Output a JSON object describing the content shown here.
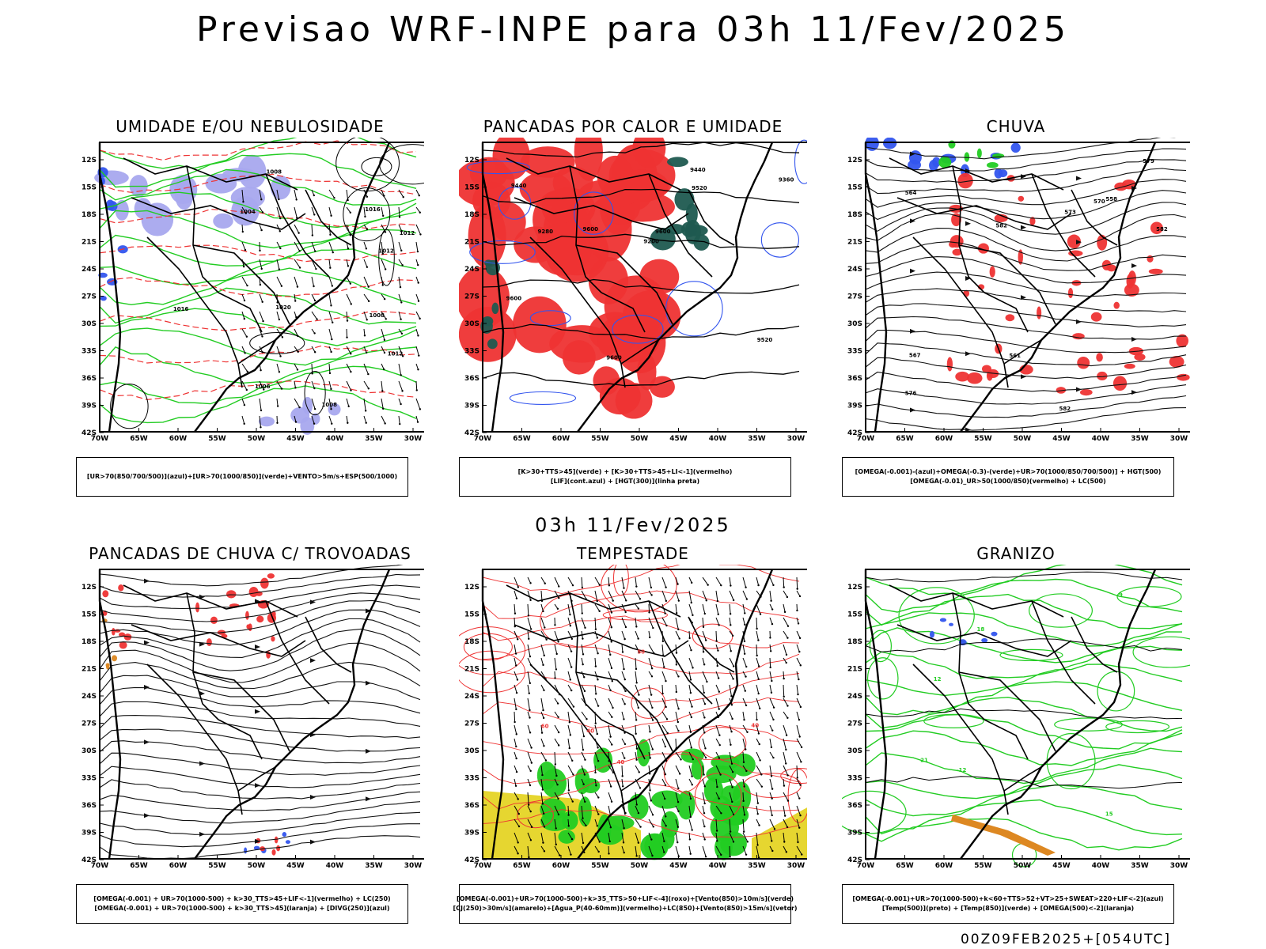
{
  "title": "Previsao WRF-INPE  para 03h 11/Fev/2025",
  "subtitle": "03h 11/Fev/2025",
  "footer": "00Z09FEB2025+[054UTC]",
  "axes": {
    "lat_labels": [
      "12S",
      "15S",
      "18S",
      "21S",
      "24S",
      "27S",
      "30S",
      "33S",
      "36S",
      "39S",
      "42S"
    ],
    "lon_labels": [
      "70W",
      "65W",
      "60W",
      "55W",
      "50W",
      "45W",
      "40W",
      "35W",
      "30W"
    ]
  },
  "colors": {
    "green": "#22cc22",
    "red": "#ee3333",
    "blue": "#3355ee",
    "lavender": "#a8a8ee",
    "darkgreen": "#1f5a50",
    "yellow": "#e6d630",
    "orange": "#dd8822"
  },
  "panels": [
    {
      "id": "umidade",
      "title": "UMIDADE E/OU NEBULOSIDADE",
      "legend": [
        "[UR>70(850/700/500)](azul)+[UR>70(1000/850)](verde)+VENTO>5m/s+ESP(500/1000)"
      ],
      "contour_labels": [
        "1012",
        "1008",
        "1016",
        "1012",
        "1004",
        "1008",
        "1012",
        "1016",
        "1020",
        "1006",
        "1008"
      ]
    },
    {
      "id": "pancadas-calor",
      "title": "PANCADAS POR CALOR E UMIDADE",
      "legend": [
        "[K>30+TTS>45](verde) + [K>30+TTS>45+LI<-1](vermelho)",
        "[LIF](cont.azul) + [HGT(300)](linha preta)"
      ],
      "contour_labels": [
        "9600",
        "9600",
        "9600",
        "9520",
        "9440",
        "9360",
        "9280",
        "9200",
        "9600",
        "9440",
        "9520"
      ]
    },
    {
      "id": "chuva",
      "title": "CHUVA",
      "legend": [
        "[OMEGA(-0.001)-(azul)+OMEGA(-0.3)-(verde)+UR>70(1000/850/700/500)] + HGT(500)",
        "[OMEGA(-0.01)_UR>50(1000/850)(vermelho) + LC(500)"
      ],
      "contour_labels": [
        "582",
        "582",
        "582",
        "579",
        "576",
        "573",
        "570",
        "567",
        "564",
        "561",
        "558"
      ]
    },
    {
      "id": "pancadas-trovoadas",
      "title": "PANCADAS DE CHUVA C/ TROVOADAS",
      "legend": [
        "[OMEGA(-0.001) + UR>70(1000-500) + k>30_TTS>45+LIF<-1](vermelho) + LC(250)",
        "[OMEGA(-0.001) + UR>70(1000-500) + k>30_TTS>45](laranja) + [DIVG(250)](azul)"
      ],
      "contour_labels": []
    },
    {
      "id": "tempestade",
      "title": "TEMPESTADE",
      "legend": [
        "[OMEGA(-0.001)+UR>70(1000-500)+k>35_TTS>50+LIF<-4](roxo)+[Vento(850)>10m/s](verde)",
        "[CJ(250)>30m/s](amarelo)+[Agua_P(40-60mm)](vermelho)+LC(850)+[Vento(850)>15m/s](vetor)"
      ],
      "contour_labels": [
        "40",
        "40",
        "40",
        "50",
        "60"
      ]
    },
    {
      "id": "granizo",
      "title": "GRANIZO",
      "legend": [
        "[OMEGA(-0.001)+UR>70(1000-500)+k<60+TTS>52+VT>25+SWEAT>220+LIF<-2](azul)",
        "[Temp(500)](preto) + [Temp(850)](verde) + [OMEGA(500)<-2](laranja)"
      ],
      "contour_labels": [
        "-9",
        "-12",
        "18",
        "15",
        "12",
        "21"
      ]
    }
  ]
}
